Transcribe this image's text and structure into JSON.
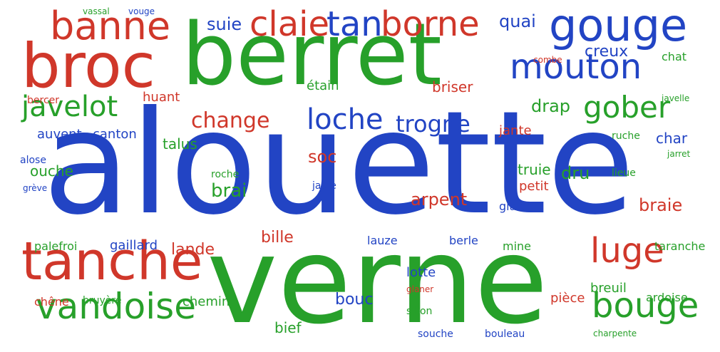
{
  "colors": {
    "red": "#d0372a",
    "green": "#27a02a",
    "blue": "#2244c4"
  },
  "words": [
    {
      "text": "alouette",
      "size": 200,
      "color": "blue"
    },
    {
      "text": "verne",
      "size": 168,
      "color": "green"
    },
    {
      "text": "berret",
      "size": 120,
      "color": "green"
    },
    {
      "text": "broc",
      "size": 86,
      "color": "red"
    },
    {
      "text": "tanche",
      "size": 74,
      "color": "red"
    },
    {
      "text": "gouge",
      "size": 62,
      "color": "blue"
    },
    {
      "text": "banne",
      "size": 54,
      "color": "red"
    },
    {
      "text": "vandoise",
      "size": 50,
      "color": "green"
    },
    {
      "text": "claie",
      "size": 48,
      "color": "red"
    },
    {
      "text": "tan",
      "size": 48,
      "color": "blue"
    },
    {
      "text": "borne",
      "size": 48,
      "color": "red"
    },
    {
      "text": "mouton",
      "size": 48,
      "color": "blue"
    },
    {
      "text": "luge",
      "size": 48,
      "color": "red"
    },
    {
      "text": "bouge",
      "size": 48,
      "color": "green"
    },
    {
      "text": "javelot",
      "size": 40,
      "color": "green"
    },
    {
      "text": "gober",
      "size": 42,
      "color": "green"
    },
    {
      "text": "loche",
      "size": 40,
      "color": "blue"
    },
    {
      "text": "trogne",
      "size": 32,
      "color": "blue"
    },
    {
      "text": "change",
      "size": 30,
      "color": "red"
    },
    {
      "text": "creux",
      "size": 22,
      "color": "blue"
    },
    {
      "text": "quai",
      "size": 24,
      "color": "blue"
    },
    {
      "text": "suie",
      "size": 24,
      "color": "blue"
    },
    {
      "text": "drap",
      "size": 24,
      "color": "green"
    },
    {
      "text": "briser",
      "size": 20,
      "color": "red"
    },
    {
      "text": "étain",
      "size": 18,
      "color": "green"
    },
    {
      "text": "huant",
      "size": 18,
      "color": "red"
    },
    {
      "text": "auvent",
      "size": 18,
      "color": "blue"
    },
    {
      "text": "canton",
      "size": 18,
      "color": "blue"
    },
    {
      "text": "talus",
      "size": 20,
      "color": "green"
    },
    {
      "text": "soc",
      "size": 24,
      "color": "red"
    },
    {
      "text": "jante",
      "size": 18,
      "color": "red"
    },
    {
      "text": "char",
      "size": 20,
      "color": "blue"
    },
    {
      "text": "ouche",
      "size": 20,
      "color": "green"
    },
    {
      "text": "brai",
      "size": 26,
      "color": "green"
    },
    {
      "text": "truie",
      "size": 20,
      "color": "green"
    },
    {
      "text": "petit",
      "size": 18,
      "color": "red"
    },
    {
      "text": "dru",
      "size": 24,
      "color": "green"
    },
    {
      "text": "arpent",
      "size": 24,
      "color": "red"
    },
    {
      "text": "braie",
      "size": 24,
      "color": "red"
    },
    {
      "text": "glaise",
      "size": 16,
      "color": "blue"
    },
    {
      "text": "jable",
      "size": 14,
      "color": "blue"
    },
    {
      "text": "roche",
      "size": 14,
      "color": "green"
    },
    {
      "text": "lieue",
      "size": 14,
      "color": "green"
    },
    {
      "text": "alose",
      "size": 14,
      "color": "blue"
    },
    {
      "text": "grève",
      "size": 12,
      "color": "blue"
    },
    {
      "text": "bille",
      "size": 22,
      "color": "red"
    },
    {
      "text": "lande",
      "size": 22,
      "color": "red"
    },
    {
      "text": "palefroi",
      "size": 16,
      "color": "green"
    },
    {
      "text": "gaillard",
      "size": 18,
      "color": "blue"
    },
    {
      "text": "lauze",
      "size": 16,
      "color": "blue"
    },
    {
      "text": "berle",
      "size": 16,
      "color": "blue"
    },
    {
      "text": "mine",
      "size": 16,
      "color": "green"
    },
    {
      "text": "taranche",
      "size": 16,
      "color": "green"
    },
    {
      "text": "lotte",
      "size": 18,
      "color": "blue"
    },
    {
      "text": "glaner",
      "size": 12,
      "color": "red"
    },
    {
      "text": "bouc",
      "size": 22,
      "color": "blue"
    },
    {
      "text": "pièce",
      "size": 18,
      "color": "red"
    },
    {
      "text": "breuil",
      "size": 18,
      "color": "green"
    },
    {
      "text": "ardoise",
      "size": 16,
      "color": "green"
    },
    {
      "text": "chêne",
      "size": 16,
      "color": "red"
    },
    {
      "text": "bruyère",
      "size": 14,
      "color": "green"
    },
    {
      "text": "chemin",
      "size": 18,
      "color": "green"
    },
    {
      "text": "bief",
      "size": 20,
      "color": "green"
    },
    {
      "text": "sillon",
      "size": 14,
      "color": "green"
    },
    {
      "text": "souche",
      "size": 14,
      "color": "blue"
    },
    {
      "text": "bouleau",
      "size": 14,
      "color": "blue"
    },
    {
      "text": "charpente",
      "size": 12,
      "color": "green"
    },
    {
      "text": "vassal",
      "size": 12,
      "color": "green"
    },
    {
      "text": "vouge",
      "size": 12,
      "color": "blue"
    },
    {
      "text": "combe",
      "size": 12,
      "color": "red"
    },
    {
      "text": "chat",
      "size": 16,
      "color": "green"
    },
    {
      "text": "javelle",
      "size": 12,
      "color": "green"
    },
    {
      "text": "ruche",
      "size": 14,
      "color": "green"
    },
    {
      "text": "jarret",
      "size": 12,
      "color": "green"
    },
    {
      "text": "bercer",
      "size": 14,
      "color": "red"
    }
  ]
}
